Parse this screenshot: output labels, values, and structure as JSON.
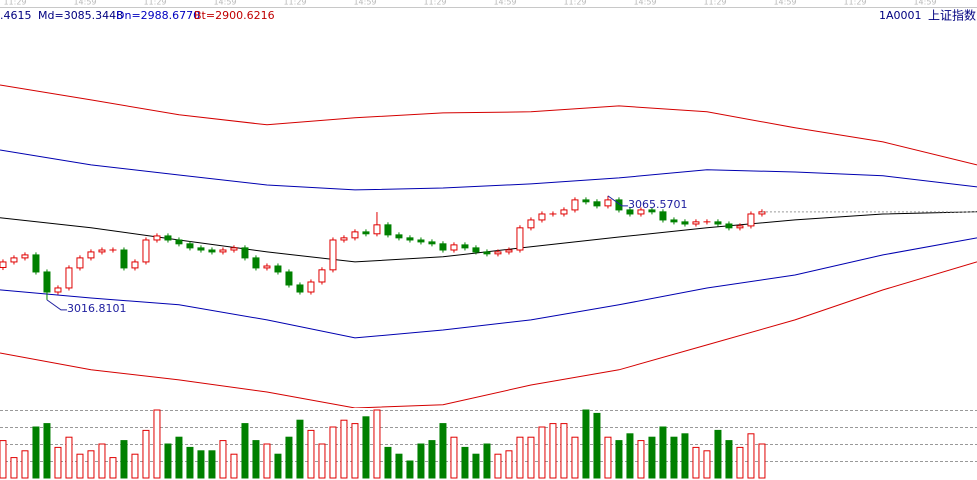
{
  "header": {
    "up": ".4615",
    "md": "Md=3085.3448",
    "dn": "Dn=2988.6770",
    "bt": "Bt=2900.6216",
    "code": "1A0001",
    "name": "上证指数",
    "time_labels": [
      "11:29",
      "14:59",
      "11:29",
      "14:59",
      "11:29",
      "14:59",
      "11:29",
      "14:59",
      "11:29",
      "14:59",
      "11:29",
      "14:59",
      "11:29",
      "14:59"
    ]
  },
  "chart_data": {
    "type": "candlestick",
    "ylim": [
      2966.1,
      3153.7
    ],
    "xlim": [
      -0.27,
      88.55
    ],
    "up_color": "#e00000",
    "down_color": "#008000",
    "open": [
      3032.0,
      3034.6,
      3036.5,
      3037.9,
      3029.9,
      3020.5,
      3022.4,
      3031.8,
      3036.5,
      3039.3,
      3040.2,
      3040.2,
      3031.8,
      3034.6,
      3044.9,
      3046.8,
      3044.9,
      3043.1,
      3041.2,
      3040.2,
      3039.3,
      3040.2,
      3041.2,
      3036.5,
      3031.8,
      3032.7,
      3029.9,
      3023.8,
      3020.5,
      3025.2,
      3030.9,
      3044.9,
      3045.9,
      3048.7,
      3047.8,
      3052.0,
      3047.3,
      3045.9,
      3044.9,
      3044.0,
      3043.1,
      3040.2,
      3042.6,
      3041.2,
      3039.3,
      3038.4,
      3039.3,
      3040.2,
      3050.6,
      3054.3,
      3057.1,
      3057.1,
      3059.0,
      3063.7,
      3062.8,
      3060.9,
      3063.7,
      3059.0,
      3057.1,
      3059.0,
      3058.1,
      3054.3,
      3053.4,
      3052.4,
      3053.4,
      3053.4,
      3052.4,
      3050.6,
      3051.5,
      3057.1
    ],
    "high": [
      3035.8,
      3037.7,
      3039.1,
      3039.1,
      3031.1,
      3023.6,
      3033.0,
      3037.7,
      3040.5,
      3041.4,
      3041.4,
      3041.4,
      3035.8,
      3046.1,
      3048.0,
      3048.0,
      3046.1,
      3044.3,
      3042.4,
      3041.4,
      3041.4,
      3042.4,
      3042.4,
      3037.7,
      3033.9,
      3033.9,
      3031.1,
      3025.0,
      3026.4,
      3032.1,
      3046.1,
      3047.1,
      3049.9,
      3049.9,
      3058.0,
      3053.2,
      3048.5,
      3047.1,
      3046.1,
      3045.2,
      3044.3,
      3043.8,
      3043.8,
      3042.4,
      3040.5,
      3040.5,
      3041.4,
      3051.8,
      3055.5,
      3058.3,
      3058.3,
      3060.2,
      3064.9,
      3064.9,
      3064.0,
      3065.6,
      3064.9,
      3060.2,
      3060.2,
      3060.2,
      3059.3,
      3055.5,
      3054.6,
      3054.6,
      3054.6,
      3054.6,
      3053.6,
      3052.7,
      3058.3,
      3059.3
    ],
    "low": [
      3030.8,
      3033.4,
      3035.3,
      3028.7,
      3016.8,
      3019.3,
      3021.2,
      3030.6,
      3035.3,
      3038.1,
      3039.0,
      3030.6,
      3030.6,
      3033.4,
      3043.7,
      3043.7,
      3041.9,
      3040.0,
      3039.0,
      3038.1,
      3038.1,
      3039.0,
      3035.3,
      3030.6,
      3030.6,
      3028.7,
      3022.6,
      3019.3,
      3019.3,
      3024.0,
      3029.7,
      3043.7,
      3044.7,
      3046.6,
      3046.6,
      3046.1,
      3044.7,
      3043.7,
      3042.8,
      3041.9,
      3039.0,
      3039.0,
      3040.0,
      3038.1,
      3037.2,
      3037.2,
      3038.1,
      3039.0,
      3049.4,
      3053.1,
      3055.9,
      3055.9,
      3057.8,
      3061.6,
      3059.7,
      3059.7,
      3057.8,
      3055.9,
      3055.9,
      3056.9,
      3053.1,
      3052.2,
      3051.2,
      3051.2,
      3052.2,
      3051.2,
      3049.4,
      3049.4,
      3050.3,
      3055.9
    ],
    "close": [
      3034.6,
      3036.5,
      3037.9,
      3029.9,
      3020.5,
      3022.4,
      3031.8,
      3036.5,
      3039.3,
      3040.2,
      3040.2,
      3031.8,
      3034.6,
      3044.9,
      3046.8,
      3044.9,
      3043.1,
      3041.2,
      3040.2,
      3039.3,
      3040.2,
      3041.2,
      3036.5,
      3031.8,
      3032.7,
      3029.9,
      3023.8,
      3020.5,
      3025.2,
      3030.9,
      3044.9,
      3045.9,
      3048.7,
      3047.8,
      3052.0,
      3047.3,
      3045.9,
      3044.9,
      3044.0,
      3043.1,
      3040.2,
      3042.6,
      3041.2,
      3039.3,
      3038.4,
      3039.3,
      3040.2,
      3050.6,
      3054.3,
      3057.1,
      3057.1,
      3059.0,
      3063.7,
      3062.8,
      3060.9,
      3063.7,
      3059.0,
      3057.1,
      3059.0,
      3058.1,
      3054.3,
      3053.4,
      3052.4,
      3053.4,
      3053.4,
      3052.4,
      3050.6,
      3051.5,
      3057.1,
      3058.1
    ],
    "bands": {
      "x": [
        -0.27,
        8,
        16,
        24,
        32,
        40,
        48,
        56,
        64,
        72,
        80,
        88.55
      ],
      "series": [
        {
          "color": "#d40000",
          "values": [
            3117.6,
            3110.6,
            3103.6,
            3098.9,
            3102.2,
            3104.5,
            3105.0,
            3107.8,
            3105.0,
            3097.5,
            3090.9,
            3080.1
          ]
        },
        {
          "color": "#0000b0",
          "values": [
            3087.1,
            3080.1,
            3075.4,
            3070.7,
            3068.4,
            3069.3,
            3071.2,
            3074.0,
            3077.8,
            3076.8,
            3075.0,
            3069.8
          ]
        },
        {
          "color": "#000000",
          "values": [
            3055.3,
            3050.6,
            3044.9,
            3039.3,
            3034.6,
            3037.0,
            3041.7,
            3046.3,
            3050.6,
            3054.3,
            3057.1,
            3058.1
          ]
        },
        {
          "color": "#0000b0",
          "values": [
            3021.5,
            3017.7,
            3014.5,
            3007.4,
            2999.0,
            3002.7,
            3007.4,
            3014.5,
            3022.4,
            3028.5,
            3037.9,
            3045.9
          ]
        },
        {
          "color": "#d40000",
          "values": [
            2991.9,
            2984.0,
            2979.3,
            2973.6,
            2966.1,
            2967.6,
            2976.9,
            2984.0,
            2995.7,
            3007.4,
            3021.5,
            3034.6
          ]
        }
      ]
    },
    "annotations": [
      {
        "text": "3016.8101",
        "index": 4,
        "at": "low"
      },
      {
        "text": "3065.5701",
        "index": 55,
        "at": "high"
      }
    ],
    "volume": {
      "ylim": [
        0,
        100
      ],
      "yticks": [
        25,
        50,
        75,
        100
      ],
      "values": [
        55,
        30,
        40,
        75,
        80,
        45,
        60,
        35,
        40,
        50,
        30,
        55,
        35,
        70,
        100,
        50,
        60,
        45,
        40,
        40,
        55,
        35,
        80,
        55,
        50,
        35,
        60,
        85,
        70,
        50,
        75,
        85,
        80,
        90,
        100,
        45,
        35,
        25,
        50,
        55,
        80,
        60,
        45,
        35,
        50,
        35,
        40,
        60,
        60,
        75,
        80,
        80,
        60,
        100,
        95,
        60,
        55,
        65,
        55,
        60,
        75,
        60,
        65,
        45,
        40,
        70,
        55,
        45,
        65,
        50
      ]
    }
  }
}
